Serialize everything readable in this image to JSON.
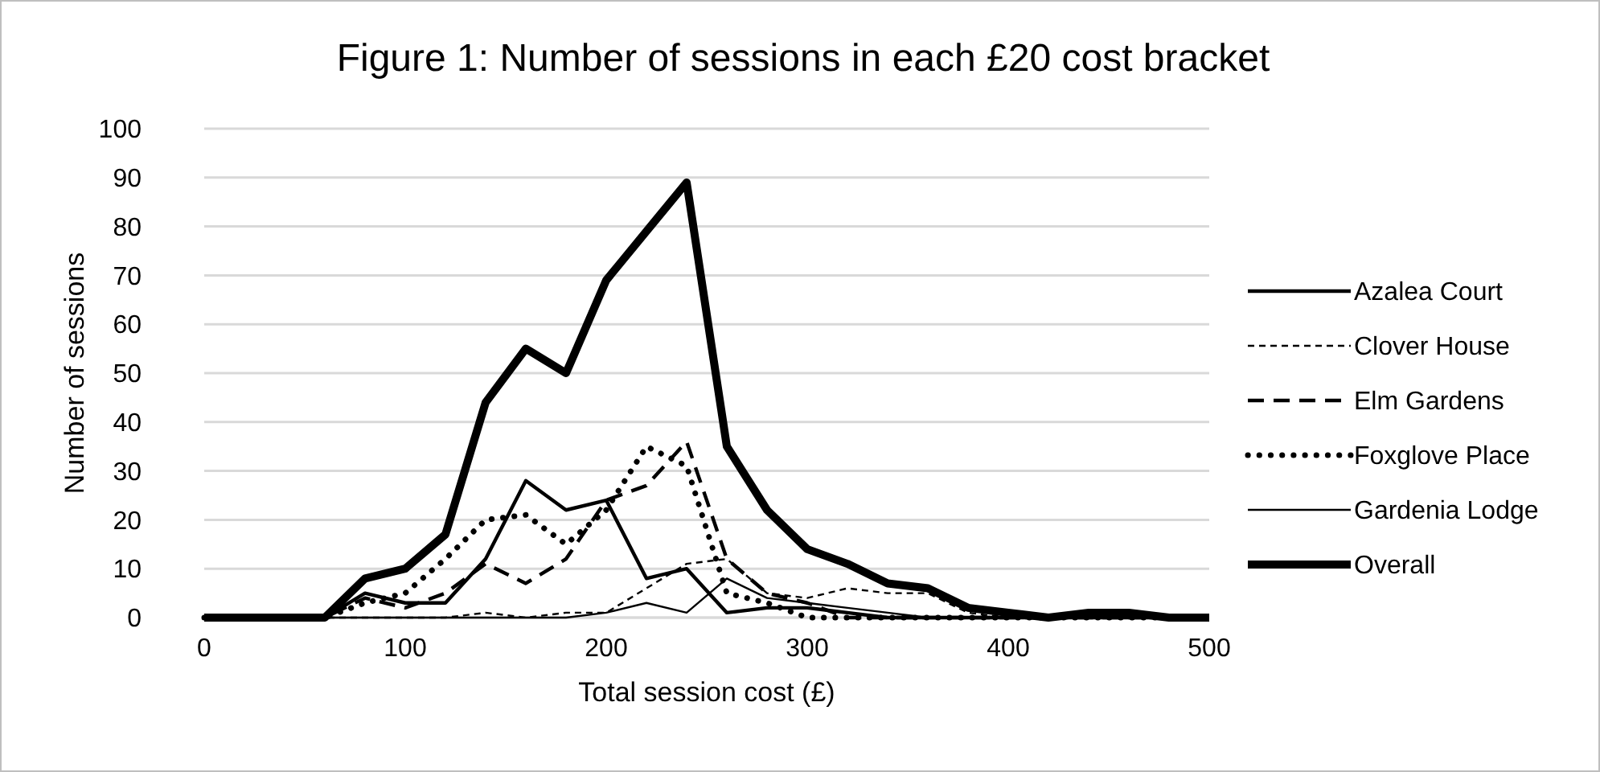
{
  "chart_data": {
    "type": "line",
    "title": "Figure 1: Number of sessions in each £20 cost bracket",
    "xlabel": "Total session cost (£)",
    "ylabel": "Number of sessions",
    "x": [
      0,
      20,
      40,
      60,
      80,
      100,
      120,
      140,
      160,
      180,
      200,
      220,
      240,
      260,
      280,
      300,
      320,
      340,
      360,
      380,
      400,
      420,
      440,
      460,
      480,
      500
    ],
    "xlim": [
      0,
      500
    ],
    "xticks": [
      0,
      100,
      200,
      300,
      400,
      500
    ],
    "ylim": [
      0,
      100
    ],
    "yticks": [
      0,
      10,
      20,
      30,
      40,
      50,
      60,
      70,
      80,
      90,
      100
    ],
    "grid": "y",
    "legend": "right",
    "marker": "none",
    "series": [
      {
        "name": "Azalea Court",
        "color": "#000000",
        "line_style": "solid",
        "values": [
          0,
          0,
          0,
          0,
          5,
          3,
          3,
          12,
          28,
          22,
          24,
          8,
          10,
          1,
          2,
          2,
          1,
          0,
          0,
          0,
          0,
          0,
          0,
          0,
          0,
          0
        ]
      },
      {
        "name": "Clover House",
        "color": "#000000",
        "line_style": "dashed",
        "values": [
          0,
          0,
          0,
          0,
          0,
          0,
          0,
          1,
          0,
          1,
          1,
          6,
          11,
          12,
          5,
          4,
          6,
          5,
          5,
          1,
          0,
          0,
          0,
          0,
          0,
          0
        ]
      },
      {
        "name": "Elm Gardens",
        "color": "#000000",
        "line_style": "dashed",
        "values": [
          0,
          0,
          0,
          0,
          4,
          2,
          5,
          11,
          7,
          12,
          24,
          27,
          36,
          12,
          5,
          3,
          0,
          0,
          0,
          0,
          0,
          0,
          0,
          0,
          0,
          0
        ]
      },
      {
        "name": "Foxglove Place",
        "color": "#000000",
        "line_style": "dotted",
        "values": [
          0,
          0,
          0,
          0,
          3,
          5,
          12,
          20,
          21,
          15,
          22,
          35,
          31,
          5,
          3,
          0,
          0,
          0,
          0,
          0,
          0,
          0,
          0,
          0,
          0,
          0
        ]
      },
      {
        "name": "Gardenia Lodge",
        "color": "#000000",
        "line_style": "solid",
        "values": [
          0,
          0,
          0,
          0,
          0,
          0,
          0,
          0,
          0,
          0,
          1,
          3,
          1,
          8,
          4,
          3,
          2,
          1,
          0,
          0,
          0,
          0,
          0,
          0,
          0,
          0
        ]
      },
      {
        "name": "Overall",
        "color": "#000000",
        "line_style": "solid",
        "values": [
          0,
          0,
          0,
          0,
          8,
          10,
          17,
          44,
          55,
          50,
          69,
          79,
          89,
          35,
          22,
          14,
          11,
          7,
          6,
          2,
          1,
          0,
          1,
          1,
          0,
          0
        ]
      }
    ]
  }
}
